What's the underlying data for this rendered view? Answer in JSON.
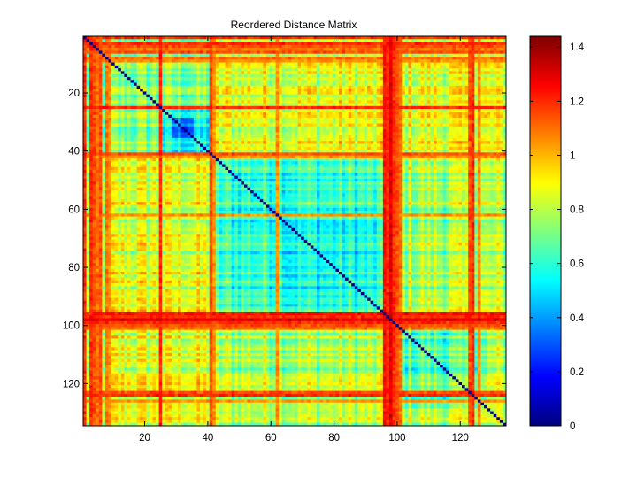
{
  "chart_data": [
    {
      "type": "heatmap",
      "title": "Reordered Distance Matrix",
      "xlabel": "",
      "ylabel": "",
      "matrix_size": 134,
      "x_ticks": [
        20,
        40,
        60,
        80,
        100,
        120
      ],
      "y_ticks": [
        20,
        40,
        60,
        80,
        100,
        120
      ],
      "xlim": [
        0.5,
        134.5
      ],
      "ylim": [
        0.5,
        134.5
      ],
      "y_direction": "reverse",
      "colormap": "jet",
      "clim": [
        0,
        1.44
      ],
      "diagonal_value": 0,
      "baseline_value": 0.78,
      "blocks": [
        {
          "rows": [
            1,
            41
          ],
          "cols": [
            1,
            41
          ],
          "value": 0.72
        },
        {
          "rows": [
            26,
            40
          ],
          "cols": [
            26,
            40
          ],
          "value": 0.52
        },
        {
          "rows": [
            29,
            35
          ],
          "cols": [
            29,
            35
          ],
          "value": 0.38
        },
        {
          "rows": [
            42,
            96
          ],
          "cols": [
            42,
            96
          ],
          "value": 0.62
        },
        {
          "rows": [
            65,
            95
          ],
          "cols": [
            65,
            95
          ],
          "value": 0.56
        },
        {
          "rows": [
            101,
            128
          ],
          "cols": [
            101,
            128
          ],
          "value": 0.66
        },
        {
          "rows": [
            1,
            41
          ],
          "cols": [
            42,
            134
          ],
          "value": 0.86
        },
        {
          "rows": [
            42,
            134
          ],
          "cols": [
            1,
            41
          ],
          "value": 0.86
        }
      ],
      "high_distance_lines": [
        {
          "index": 1,
          "value": 1.2
        },
        {
          "index": 3,
          "value": 1.2
        },
        {
          "index": 4,
          "value": 1.15
        },
        {
          "index": 5,
          "value": 1.1
        },
        {
          "index": 6,
          "value": 1.15
        },
        {
          "index": 8,
          "value": 1.1
        },
        {
          "index": 9,
          "value": 1.05
        },
        {
          "index": 25,
          "value": 1.2
        },
        {
          "index": 41,
          "value": 1.15
        },
        {
          "index": 42,
          "value": 1.05
        },
        {
          "index": 62,
          "value": 1.05
        },
        {
          "index": 96,
          "value": 1.25
        },
        {
          "index": 97,
          "value": 1.2
        },
        {
          "index": 98,
          "value": 1.3
        },
        {
          "index": 99,
          "value": 1.2
        },
        {
          "index": 100,
          "value": 1.15
        },
        {
          "index": 101,
          "value": 1.1
        },
        {
          "index": 123,
          "value": 1.15
        },
        {
          "index": 124,
          "value": 1.2
        },
        {
          "index": 126,
          "value": 1.05
        }
      ]
    },
    {
      "type": "colorbar",
      "colormap": "jet",
      "clim": [
        0,
        1.44
      ],
      "ticks": [
        "0",
        "0.2",
        "0.4",
        "0.6",
        "0.8",
        "1",
        "1.2",
        "1.4"
      ],
      "tick_values": [
        0,
        0.2,
        0.4,
        0.6,
        0.8,
        1,
        1.2,
        1.4
      ]
    }
  ]
}
